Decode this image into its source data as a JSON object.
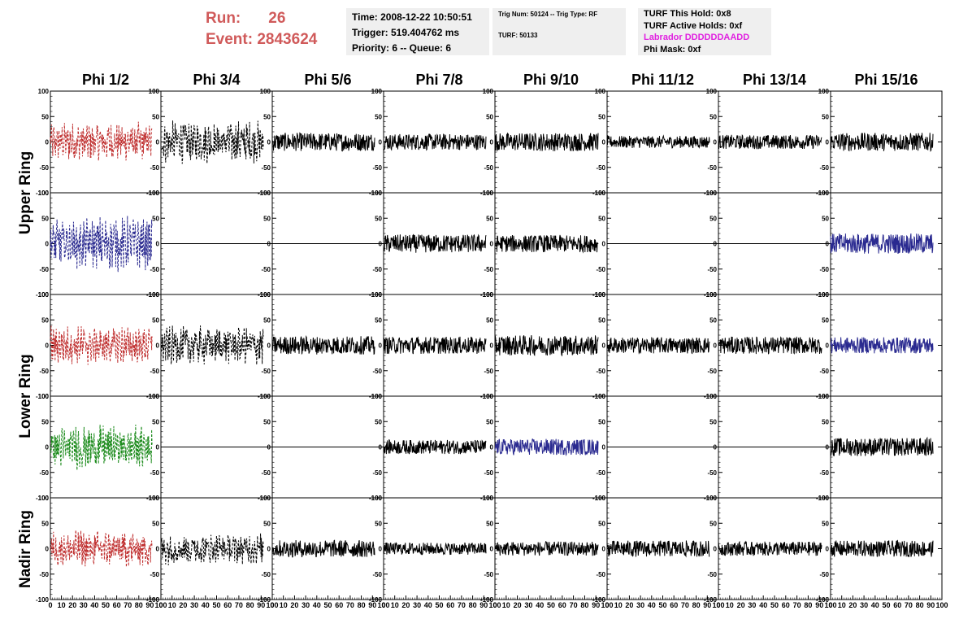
{
  "header": {
    "run_label": "Run:",
    "run_value": "26",
    "event_label": "Event:",
    "event_value": "2843624",
    "time": "Time: 2008-12-22 10:50:51",
    "trigger": "Trigger: 519.404762 ms",
    "priority": "Priority: 6 -- Queue: 6",
    "trig_num": "Trig Num: 50124 -- Trig Type: RF",
    "turf": "TURF: 50133",
    "turf_this_hold": "TURF This Hold: 0x8",
    "turf_active_holds": "TURF Active Holds: 0xf",
    "labrador": "Labrador DDDDDDAADD",
    "phi_mask": "Phi Mask: 0xf"
  },
  "colors": {
    "red": "#c03030",
    "blue": "#2a2a90",
    "green": "#1a8a1a",
    "black": "#000000",
    "magenta": "#e020e0"
  },
  "chart_data": {
    "type": "line",
    "columns": [
      "Phi 1/2",
      "Phi 3/4",
      "Phi 5/6",
      "Phi 7/8",
      "Phi 9/10",
      "Phi 11/12",
      "Phi 13/14",
      "Phi 15/16"
    ],
    "row_labels": [
      "Upper Ring",
      "Lower Ring",
      "Nadir Ring"
    ],
    "xlim": [
      0,
      100
    ],
    "ylim": [
      -100,
      100
    ],
    "x_ticks": [
      0,
      10,
      20,
      30,
      40,
      50,
      60,
      70,
      80,
      90,
      100
    ],
    "x_tick_labels": [
      "0",
      "10",
      "20",
      "30",
      "40",
      "50",
      "60",
      "70",
      "80",
      "90",
      "100"
    ],
    "y_ticks": [
      -100,
      -50,
      0,
      50,
      100
    ],
    "y_tick_labels": [
      "-100",
      "-50",
      "0",
      "50",
      "100"
    ],
    "trace_x_range": [
      0,
      92
    ],
    "panels": [
      [
        {
          "color": "red",
          "dashed": true,
          "amp": 30,
          "active": true
        },
        {
          "color": "black",
          "dashed": true,
          "amp": 32,
          "active": true
        },
        {
          "color": "black",
          "dashed": false,
          "amp": 18,
          "active": true
        },
        {
          "color": "black",
          "dashed": false,
          "amp": 16,
          "active": true
        },
        {
          "color": "black",
          "dashed": false,
          "amp": 18,
          "active": true
        },
        {
          "color": "black",
          "dashed": false,
          "amp": 12,
          "active": true
        },
        {
          "color": "black",
          "dashed": false,
          "amp": 14,
          "active": true
        },
        {
          "color": "black",
          "dashed": false,
          "amp": 18,
          "active": true
        }
      ],
      [
        {
          "color": "blue",
          "dashed": true,
          "amp": 42,
          "active": true
        },
        {
          "color": "black",
          "dashed": false,
          "amp": 0,
          "active": false
        },
        {
          "color": "black",
          "dashed": false,
          "amp": 0,
          "active": false
        },
        {
          "color": "black",
          "dashed": false,
          "amp": 18,
          "active": true
        },
        {
          "color": "black",
          "dashed": false,
          "amp": 17,
          "active": true
        },
        {
          "color": "black",
          "dashed": false,
          "amp": 0,
          "active": false
        },
        {
          "color": "black",
          "dashed": false,
          "amp": 0,
          "active": false
        },
        {
          "color": "blue",
          "dashed": false,
          "amp": 20,
          "active": true
        }
      ],
      [
        {
          "color": "red",
          "dashed": true,
          "amp": 30,
          "active": true
        },
        {
          "color": "black",
          "dashed": true,
          "amp": 30,
          "active": true
        },
        {
          "color": "black",
          "dashed": false,
          "amp": 18,
          "active": true
        },
        {
          "color": "black",
          "dashed": false,
          "amp": 17,
          "active": true
        },
        {
          "color": "black",
          "dashed": false,
          "amp": 20,
          "active": true
        },
        {
          "color": "black",
          "dashed": false,
          "amp": 16,
          "active": true
        },
        {
          "color": "black",
          "dashed": false,
          "amp": 17,
          "active": true
        },
        {
          "color": "blue",
          "dashed": false,
          "amp": 16,
          "active": true
        }
      ],
      [
        {
          "color": "green",
          "dashed": true,
          "amp": 34,
          "active": true
        },
        {
          "color": "black",
          "dashed": false,
          "amp": 0,
          "active": false
        },
        {
          "color": "black",
          "dashed": false,
          "amp": 0,
          "active": false
        },
        {
          "color": "black",
          "dashed": false,
          "amp": 14,
          "active": true
        },
        {
          "color": "blue",
          "dashed": false,
          "amp": 16,
          "active": true
        },
        {
          "color": "black",
          "dashed": false,
          "amp": 0,
          "active": false
        },
        {
          "color": "black",
          "dashed": false,
          "amp": 0,
          "active": false
        },
        {
          "color": "black",
          "dashed": false,
          "amp": 18,
          "active": true
        }
      ],
      [
        {
          "color": "red",
          "dashed": true,
          "amp": 28,
          "active": true
        },
        {
          "color": "black",
          "dashed": true,
          "amp": 24,
          "active": true
        },
        {
          "color": "black",
          "dashed": false,
          "amp": 17,
          "active": true
        },
        {
          "color": "black",
          "dashed": false,
          "amp": 12,
          "active": true
        },
        {
          "color": "black",
          "dashed": false,
          "amp": 14,
          "active": true
        },
        {
          "color": "black",
          "dashed": false,
          "amp": 16,
          "active": true
        },
        {
          "color": "black",
          "dashed": false,
          "amp": 14,
          "active": true
        },
        {
          "color": "black",
          "dashed": false,
          "amp": 16,
          "active": true
        }
      ]
    ]
  }
}
